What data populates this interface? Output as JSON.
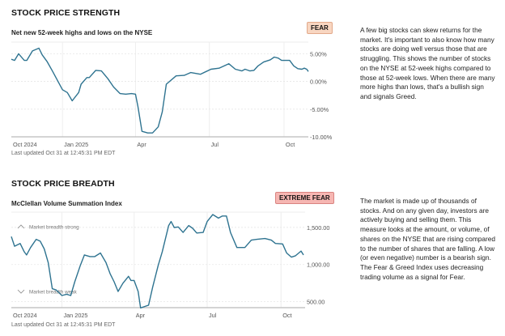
{
  "sections": [
    {
      "title": "STOCK PRICE STRENGTH",
      "badge": "FEAR",
      "badge_color": "#f8d6c1",
      "updated": "Last updated Oct 31 at 12:45:31 PM EDT",
      "description_lines": [
        "A few big stocks can skew returns for the",
        "market. It's important to also know how many",
        "stocks are doing well versus those that are",
        "struggling. This shows the number of stocks",
        "on the NYSE at 52-week highs compared to",
        "those at 52-week lows. When there are many",
        "more highs than lows, that's a bullish sign",
        "and signals Greed."
      ]
    },
    {
      "title": "STOCK PRICE BREADTH",
      "badge": "EXTREME FEAR",
      "badge_color": "#f6b6b2",
      "updated": "Last updated Oct 31 at 12:45:31 PM EDT",
      "description_lines": [
        "The market is made up of thousands of",
        "stocks. And on any given day, investors are",
        "actively buying and selling them. This",
        "measure looks at the amount, or volume, of",
        "shares on the NYSE that are rising compared",
        "to the number of shares that are falling. A low",
        "(or even negative) number is a bearish sign.",
        "The Fear & Greed Index uses decreasing",
        "trading volume as a signal for Fear."
      ]
    }
  ],
  "chart_data": [
    {
      "type": "line",
      "title": "Net new 52-week highs and lows on the NYSE",
      "line_color": "#2e7390",
      "grid": true,
      "xlim": [
        "2024-10-30",
        "2025-10-31"
      ],
      "ylim": [
        -10,
        7
      ],
      "x_ticks": [
        {
          "label": "Oct 2024",
          "date": "2024-10-30"
        },
        {
          "label": "Jan 2025",
          "date": "2025-01-01"
        },
        {
          "label": "Apr",
          "date": "2025-04-01"
        },
        {
          "label": "Jul",
          "date": "2025-07-01"
        },
        {
          "label": "Oct",
          "date": "2025-10-01"
        }
      ],
      "y_ticks": [
        {
          "label": "5.00%",
          "value": 5
        },
        {
          "label": "0.00%",
          "value": 0
        },
        {
          "label": "-5.00%",
          "value": -5
        },
        {
          "label": "-10.00%",
          "value": -10
        }
      ],
      "points": [
        [
          "2024-10-30",
          4.0
        ],
        [
          "2024-11-03",
          3.8
        ],
        [
          "2024-11-08",
          5.0
        ],
        [
          "2024-11-15",
          3.8
        ],
        [
          "2024-11-18",
          3.8
        ],
        [
          "2024-11-25",
          5.5
        ],
        [
          "2024-12-03",
          6.0
        ],
        [
          "2024-12-07",
          4.8
        ],
        [
          "2024-12-13",
          3.6
        ],
        [
          "2024-12-20",
          1.8
        ],
        [
          "2024-12-25",
          0.4
        ],
        [
          "2025-01-01",
          -1.5
        ],
        [
          "2025-01-07",
          -2.0
        ],
        [
          "2025-01-13",
          -3.5
        ],
        [
          "2025-01-21",
          -2.0
        ],
        [
          "2025-01-24",
          -0.5
        ],
        [
          "2025-01-31",
          0.7
        ],
        [
          "2025-02-03",
          0.7
        ],
        [
          "2025-02-11",
          2.0
        ],
        [
          "2025-02-18",
          1.9
        ],
        [
          "2025-02-26",
          0.5
        ],
        [
          "2025-03-05",
          -1.0
        ],
        [
          "2025-03-13",
          -2.2
        ],
        [
          "2025-03-20",
          -2.3
        ],
        [
          "2025-03-27",
          -2.2
        ],
        [
          "2025-04-01",
          -2.3
        ],
        [
          "2025-04-04",
          -4.5
        ],
        [
          "2025-04-09",
          -9.0
        ],
        [
          "2025-04-16",
          -9.3
        ],
        [
          "2025-04-22",
          -9.3
        ],
        [
          "2025-04-29",
          -8.2
        ],
        [
          "2025-05-04",
          -5.5
        ],
        [
          "2025-05-09",
          -0.5
        ],
        [
          "2025-05-21",
          1.0
        ],
        [
          "2025-05-31",
          1.1
        ],
        [
          "2025-06-08",
          1.6
        ],
        [
          "2025-06-20",
          1.3
        ],
        [
          "2025-07-03",
          2.2
        ],
        [
          "2025-07-13",
          2.4
        ],
        [
          "2025-07-25",
          3.2
        ],
        [
          "2025-08-02",
          2.2
        ],
        [
          "2025-08-10",
          1.9
        ],
        [
          "2025-08-14",
          2.2
        ],
        [
          "2025-08-20",
          1.9
        ],
        [
          "2025-08-25",
          2.0
        ],
        [
          "2025-08-30",
          2.8
        ],
        [
          "2025-09-06",
          3.5
        ],
        [
          "2025-09-14",
          3.9
        ],
        [
          "2025-09-19",
          4.4
        ],
        [
          "2025-09-24",
          4.2
        ],
        [
          "2025-09-28",
          3.8
        ],
        [
          "2025-10-08",
          3.8
        ],
        [
          "2025-10-13",
          2.8
        ],
        [
          "2025-10-18",
          2.3
        ],
        [
          "2025-10-23",
          2.2
        ],
        [
          "2025-10-26",
          2.4
        ],
        [
          "2025-10-29",
          2.2
        ],
        [
          "2025-10-31",
          1.8
        ]
      ]
    },
    {
      "type": "line",
      "title": "McClellan Volume Summation Index",
      "line_color": "#2e7390",
      "grid": true,
      "xlim": [
        "2024-10-30",
        "2025-10-31"
      ],
      "ylim": [
        420,
        1730
      ],
      "annotations": [
        {
          "label": "Market breadth strong",
          "icon": "chevron-up-icon"
        },
        {
          "label": "Market breadth weak",
          "icon": "chevron-down-icon"
        }
      ],
      "x_ticks": [
        {
          "label": "Oct 2024",
          "date": "2024-10-30"
        },
        {
          "label": "Jan 2025",
          "date": "2025-01-01"
        },
        {
          "label": "Apr",
          "date": "2025-04-01"
        },
        {
          "label": "Jul",
          "date": "2025-07-01"
        },
        {
          "label": "Oct",
          "date": "2025-10-01"
        }
      ],
      "y_ticks": [
        {
          "label": "1,500.00",
          "value": 1500
        },
        {
          "label": "1,000.00",
          "value": 1000
        },
        {
          "label": "500.00",
          "value": 500
        }
      ],
      "points": [
        [
          "2024-10-30",
          1376
        ],
        [
          "2024-11-03",
          1247
        ],
        [
          "2024-11-10",
          1284
        ],
        [
          "2024-11-15",
          1173
        ],
        [
          "2024-11-18",
          1129
        ],
        [
          "2024-11-23",
          1229
        ],
        [
          "2024-11-30",
          1339
        ],
        [
          "2024-12-05",
          1314
        ],
        [
          "2024-12-10",
          1210
        ],
        [
          "2024-12-15",
          1026
        ],
        [
          "2024-12-20",
          675
        ],
        [
          "2024-12-25",
          657
        ],
        [
          "2025-01-01",
          583
        ],
        [
          "2025-01-07",
          601
        ],
        [
          "2025-01-12",
          583
        ],
        [
          "2025-01-17",
          768
        ],
        [
          "2025-01-24",
          989
        ],
        [
          "2025-01-29",
          1129
        ],
        [
          "2025-02-05",
          1107
        ],
        [
          "2025-02-11",
          1107
        ],
        [
          "2025-02-18",
          1155
        ],
        [
          "2025-02-25",
          1026
        ],
        [
          "2025-03-02",
          878
        ],
        [
          "2025-03-07",
          768
        ],
        [
          "2025-03-12",
          638
        ],
        [
          "2025-03-18",
          749
        ],
        [
          "2025-03-25",
          841
        ],
        [
          "2025-03-28",
          786
        ],
        [
          "2025-04-01",
          786
        ],
        [
          "2025-04-06",
          638
        ],
        [
          "2025-04-09",
          417
        ],
        [
          "2025-04-14",
          435
        ],
        [
          "2025-04-19",
          454
        ],
        [
          "2025-04-24",
          694
        ],
        [
          "2025-05-01",
          989
        ],
        [
          "2025-05-06",
          1173
        ],
        [
          "2025-05-14",
          1524
        ],
        [
          "2025-05-17",
          1579
        ],
        [
          "2025-05-21",
          1498
        ],
        [
          "2025-05-26",
          1506
        ],
        [
          "2025-06-01",
          1432
        ],
        [
          "2025-06-08",
          1524
        ],
        [
          "2025-06-13",
          1487
        ],
        [
          "2025-06-18",
          1424
        ],
        [
          "2025-06-26",
          1432
        ],
        [
          "2025-07-01",
          1579
        ],
        [
          "2025-07-08",
          1672
        ],
        [
          "2025-07-15",
          1624
        ],
        [
          "2025-07-20",
          1653
        ],
        [
          "2025-07-25",
          1653
        ],
        [
          "2025-07-30",
          1432
        ],
        [
          "2025-08-07",
          1229
        ],
        [
          "2025-08-17",
          1229
        ],
        [
          "2025-08-25",
          1328
        ],
        [
          "2025-09-01",
          1339
        ],
        [
          "2025-09-11",
          1350
        ],
        [
          "2025-09-19",
          1328
        ],
        [
          "2025-09-24",
          1284
        ],
        [
          "2025-10-03",
          1277
        ],
        [
          "2025-10-08",
          1155
        ],
        [
          "2025-10-14",
          1100
        ],
        [
          "2025-10-19",
          1118
        ],
        [
          "2025-10-26",
          1181
        ],
        [
          "2025-10-29",
          1129
        ]
      ]
    }
  ]
}
